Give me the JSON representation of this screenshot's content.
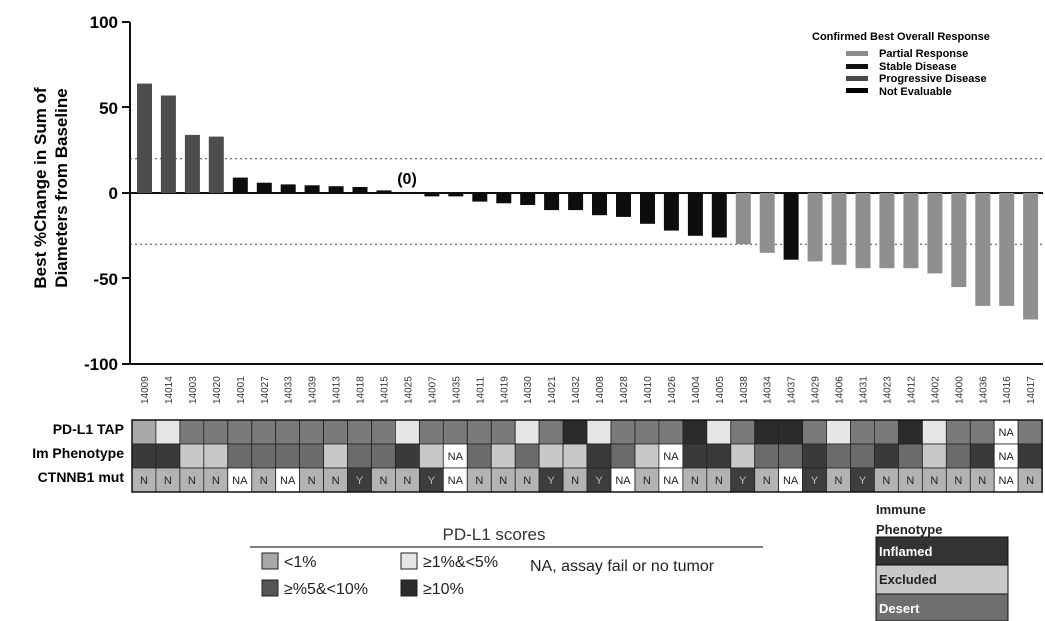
{
  "chart_data": {
    "type": "bar",
    "ylabel_line1": "Best  %Change in Sum of",
    "ylabel_line2": "Diameters from Baseline",
    "ylim": [
      -100,
      100
    ],
    "yticks": [
      "100",
      "50",
      "0",
      "-50",
      "-100"
    ],
    "reference_lines": [
      20,
      -30
    ],
    "annotation": "(0)",
    "categories": [
      "14009",
      "14014",
      "14003",
      "14020",
      "14001",
      "14027",
      "14033",
      "14039",
      "14013",
      "14018",
      "14015",
      "14025",
      "14007",
      "14035",
      "14011",
      "14019",
      "14030",
      "14021",
      "14032",
      "14008",
      "14028",
      "14010",
      "14026",
      "14004",
      "14005",
      "14038",
      "14034",
      "14037",
      "14029",
      "14006",
      "14031",
      "14023",
      "14012",
      "14002",
      "14000",
      "14036",
      "14016",
      "14017"
    ],
    "values": [
      64,
      57,
      34,
      33,
      9,
      6,
      5,
      4.5,
      4,
      3.5,
      1.5,
      0,
      -2,
      -2,
      -5,
      -6,
      -7,
      -10,
      -10,
      -13,
      -14,
      -18,
      -22,
      -25,
      -26,
      -30,
      -35,
      -39,
      -40,
      -42,
      -44,
      -44,
      -44,
      -47,
      -55,
      -66,
      -66,
      -74
    ],
    "response": [
      "PD",
      "PD",
      "PD",
      "PD",
      "SD",
      "SD",
      "SD",
      "SD",
      "SD",
      "SD",
      "SD",
      "SD",
      "SD",
      "SD",
      "SD",
      "SD",
      "SD",
      "SD",
      "SD",
      "SD",
      "SD",
      "SD",
      "SD",
      "SD",
      "SD",
      "PR",
      "PR",
      "SD",
      "PR",
      "PR",
      "PR",
      "PR",
      "PR",
      "PR",
      "PR",
      "PR",
      "PR",
      "PR"
    ],
    "legend": {
      "title": "Confirmed Best Overall Response",
      "items": [
        {
          "label": "Partial Response",
          "color": "#8c8c8c"
        },
        {
          "label": "Stable Disease",
          "color": "#111111"
        },
        {
          "label": "Progressive Disease",
          "color": "#4a4a4a"
        },
        {
          "label": "Not Evaluable",
          "color": "#000000"
        }
      ]
    },
    "response_colors": {
      "PR": "#8f8f8f",
      "SD": "#0d0d0d",
      "PD": "#4d4d4d"
    }
  },
  "heatmap": {
    "row_labels": [
      "PD-L1 TAP",
      "Im Phenotype",
      "CTNNB1 mut"
    ],
    "pdl1": [
      "a",
      "c",
      "b",
      "b",
      "b",
      "b",
      "b",
      "b",
      "b",
      "b",
      "b",
      "c",
      "b",
      "b",
      "b",
      "b",
      "c",
      "b",
      "d",
      "c",
      "b",
      "b",
      "b",
      "d",
      "c",
      "b",
      "d",
      "d",
      "b",
      "c",
      "b",
      "b",
      "d",
      "c",
      "b",
      "b",
      "na",
      "b"
    ],
    "immune": [
      "I",
      "I",
      "E",
      "E",
      "D",
      "D",
      "D",
      "D",
      "E",
      "D",
      "D",
      "I",
      "E",
      "na",
      "D",
      "E",
      "D",
      "E",
      "E",
      "I",
      "D",
      "E",
      "na",
      "I",
      "I",
      "E",
      "D",
      "D",
      "I",
      "D",
      "D",
      "I",
      "D",
      "E",
      "D",
      "I",
      "na",
      "I"
    ],
    "ctnnb1": [
      "N",
      "N",
      "N",
      "N",
      "NA",
      "N",
      "NA",
      "N",
      "N",
      "Y",
      "N",
      "N",
      "Y",
      "NA",
      "N",
      "N",
      "N",
      "Y",
      "N",
      "Y",
      "NA",
      "N",
      "NA",
      "N",
      "N",
      "Y",
      "N",
      "NA",
      "Y",
      "N",
      "Y",
      "N",
      "N",
      "N",
      "N",
      "N",
      "NA",
      "N"
    ],
    "na_text": "NA",
    "pdl1_colors": {
      "a": "#a9a9a9",
      "b": "#7a7a7a",
      "c": "#e6e6e6",
      "d": "#2b2b2b",
      "na": "#ffffff"
    },
    "immune_colors": {
      "I": "#3a3a3a",
      "E": "#c8c8c8",
      "D": "#6b6b6b",
      "na": "#ffffff"
    },
    "ctnnb1_colors": {
      "N": "#b3b3b3",
      "Y": "#3d3d3d",
      "NA": "#ffffff"
    }
  },
  "pdl1_legend": {
    "title": "PD-L1 scores",
    "items": [
      {
        "label": "<1%",
        "color": "#a9a9a9"
      },
      {
        "label": "≥1%&<5%",
        "color": "#e6e6e6"
      },
      {
        "label": "≥%5&<10%",
        "color": "#555555"
      },
      {
        "label": "≥10%",
        "color": "#2b2b2b"
      }
    ],
    "note": "NA, assay fail or no tumor"
  },
  "immune_legend": {
    "title_line1": "Immune",
    "title_line2": "Phenotype",
    "items": [
      {
        "label": "Inflamed",
        "color": "#333333",
        "text_color": "#ffffff"
      },
      {
        "label": "Excluded",
        "color": "#c8c8c8",
        "text_color": "#222222"
      },
      {
        "label": "Desert",
        "color": "#6f6f6f",
        "text_color": "#ffffff"
      }
    ]
  }
}
